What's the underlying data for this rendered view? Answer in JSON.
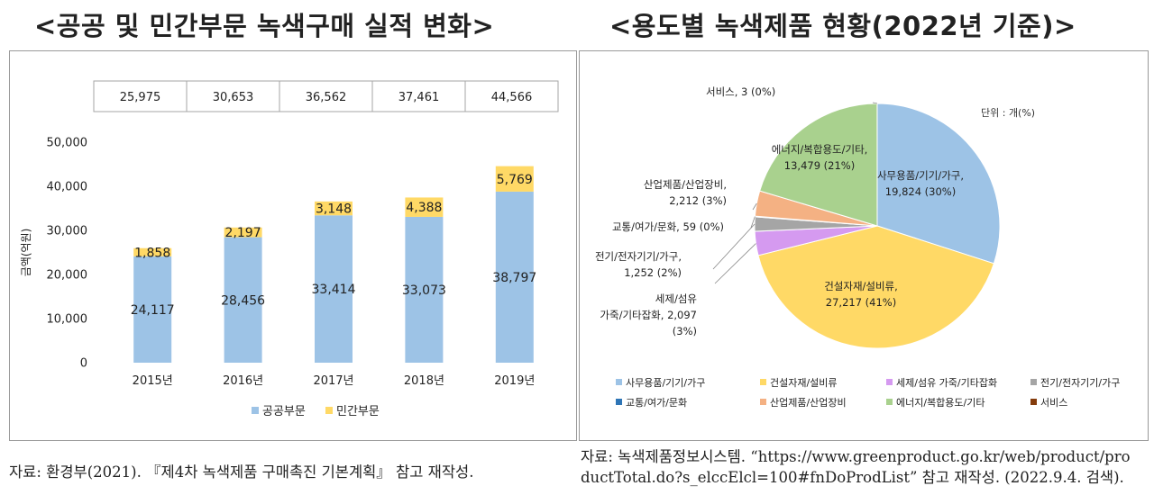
{
  "titles": {
    "left": "<공공 및 민간부문 녹색구매 실적 변화>",
    "right": "<용도별 녹색제품 현황(2022년 기준)>"
  },
  "sources": {
    "left": "자료: 환경부(2021). 『제4차 녹색제품 구매촉진 기본계획』 참고 재작성.",
    "right_line1": "자료: 녹색제품정보시스템. “https://www.greenproduct.go.kr/web/product/pro",
    "right_line2": "ductTotal.do?s_elccElcl=100#fnDoProdList” 참고 재작성. (2022.9.4. 검색)."
  },
  "chart_data": [
    {
      "type": "bar",
      "stacked": true,
      "categories": [
        "2015년",
        "2016년",
        "2017년",
        "2018년",
        "2019년"
      ],
      "series": [
        {
          "name": "공공부문",
          "values": [
            24117,
            28456,
            33414,
            33073,
            38797
          ],
          "labels": [
            "24,117",
            "28,456",
            "33,414",
            "33,073",
            "38,797"
          ],
          "color": "#9dc3e6"
        },
        {
          "name": "민간부문",
          "values": [
            1858,
            2197,
            3148,
            4388,
            5769
          ],
          "labels": [
            "1,858",
            "2,197",
            "3,148",
            "4,388",
            "5,769"
          ],
          "color": "#ffd966"
        }
      ],
      "totals": [
        "25,975",
        "30,653",
        "36,562",
        "37,461",
        "44,566"
      ],
      "ylabel": "금액(억원)",
      "ylim": [
        0,
        50000
      ],
      "yticks": [
        0,
        10000,
        20000,
        30000,
        40000,
        50000
      ],
      "ytick_labels": [
        "0",
        "10,000",
        "20,000",
        "30,000",
        "40,000",
        "50,000"
      ],
      "grid": false,
      "legend_position": "bottom"
    },
    {
      "type": "pie",
      "unit_label": "단위 : 개(%)",
      "slices": [
        {
          "name": "사무용품/기기/가구",
          "value": 19824,
          "percent": 30,
          "label_lines": [
            "사무용품/기기/가구,",
            "19,824 (30%)"
          ],
          "color": "#9dc3e6"
        },
        {
          "name": "건설자재/설비류",
          "value": 27217,
          "percent": 41,
          "label_lines": [
            "건설자재/설비류,",
            "27,217 (41%)"
          ],
          "color": "#ffd966"
        },
        {
          "name": "세제/섬유 가죽/기타잡화",
          "value": 2097,
          "percent": 3,
          "label_lines": [
            "세제/섬유",
            "가죽/기타잡화, 2,097",
            "(3%)"
          ],
          "color": "#d59af0"
        },
        {
          "name": "전기/전자기기/가구",
          "value": 1252,
          "percent": 2,
          "label_lines": [
            "전기/전자기기/가구,",
            "1,252 (2%)"
          ],
          "color": "#a5a5a5"
        },
        {
          "name": "교통/여가/문화",
          "value": 59,
          "percent": 0,
          "label_lines": [
            "교통/여가/문화, 59 (0%)"
          ],
          "color": "#2e75b6"
        },
        {
          "name": "산업제품/산업장비",
          "value": 2212,
          "percent": 3,
          "label_lines": [
            "산업제품/산업장비,",
            "2,212 (3%)"
          ],
          "color": "#f4b183"
        },
        {
          "name": "에너지/복합용도/기타",
          "value": 13479,
          "percent": 21,
          "label_lines": [
            "에너지/복합용도/기타,",
            "13,479 (21%)"
          ],
          "color": "#a9d18e"
        },
        {
          "name": "서비스",
          "value": 3,
          "percent": 0,
          "label_lines": [
            "서비스, 3 (0%)"
          ],
          "color": "#843c0c"
        }
      ],
      "legend_position": "bottom"
    }
  ]
}
